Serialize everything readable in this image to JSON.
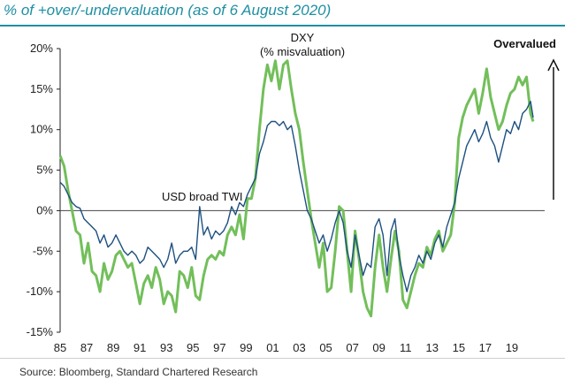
{
  "header": {
    "title": "% of +over/-undervaluation (as of 6 August 2020)"
  },
  "footer": {
    "source": "Source: Bloomberg, Standard Chartered Research"
  },
  "colors": {
    "title": "#1f8fa3",
    "dxy_line": "#72bf5a",
    "twi_line": "#1d5080",
    "axis": "#222222"
  },
  "chart_data": {
    "type": "line",
    "title": "% of +over/-undervaluation (as of 6 August 2020)",
    "xlabel": "",
    "ylabel": "",
    "xlim": [
      1985,
      2021.2
    ],
    "ylim": [
      -15,
      20
    ],
    "y_ticks": [
      20,
      15,
      10,
      5,
      0,
      -5,
      -10,
      -15
    ],
    "y_tick_labels": [
      "20%",
      "15%",
      "10%",
      "5%",
      "0%",
      "-5%",
      "-10%",
      "-15%"
    ],
    "x_ticks": [
      1985,
      1987,
      1989,
      1991,
      1993,
      1995,
      1997,
      1999,
      2001,
      2003,
      2005,
      2007,
      2009,
      2011,
      2013,
      2015,
      2017,
      2019
    ],
    "x_tick_labels": [
      "85",
      "87",
      "89",
      "91",
      "93",
      "95",
      "97",
      "99",
      "01",
      "03",
      "05",
      "07",
      "09",
      "11",
      "13",
      "15",
      "17",
      "19"
    ],
    "annotations": {
      "dxy_label_line1": "DXY",
      "dxy_label_line2": "(% misvaluation)",
      "twi_label": "USD broad TWI",
      "overvalued_label": "Overvalued"
    },
    "series": [
      {
        "name": "DXY (% misvaluation)",
        "x": [
          1985.0,
          1985.3,
          1985.6,
          1985.9,
          1986.2,
          1986.5,
          1986.8,
          1987.1,
          1987.4,
          1987.7,
          1988.0,
          1988.3,
          1988.6,
          1988.9,
          1989.2,
          1989.5,
          1989.8,
          1990.1,
          1990.4,
          1990.7,
          1991.0,
          1991.3,
          1991.6,
          1991.9,
          1992.2,
          1992.5,
          1992.8,
          1993.1,
          1993.4,
          1993.7,
          1994.0,
          1994.3,
          1994.6,
          1994.9,
          1995.2,
          1995.5,
          1995.8,
          1996.1,
          1996.4,
          1996.7,
          1997.0,
          1997.3,
          1997.6,
          1997.9,
          1998.2,
          1998.5,
          1998.8,
          1999.1,
          1999.4,
          1999.7,
          2000.0,
          2000.3,
          2000.6,
          2000.9,
          2001.2,
          2001.5,
          2001.8,
          2002.1,
          2002.4,
          2002.7,
          2003.0,
          2003.3,
          2003.6,
          2003.9,
          2004.2,
          2004.5,
          2004.8,
          2005.1,
          2005.4,
          2005.7,
          2006.0,
          2006.3,
          2006.6,
          2006.9,
          2007.2,
          2007.5,
          2007.8,
          2008.1,
          2008.4,
          2008.7,
          2009.0,
          2009.3,
          2009.6,
          2009.9,
          2010.2,
          2010.5,
          2010.8,
          2011.1,
          2011.4,
          2011.7,
          2012.0,
          2012.3,
          2012.6,
          2012.9,
          2013.2,
          2013.5,
          2013.8,
          2014.1,
          2014.4,
          2014.7,
          2015.0,
          2015.3,
          2015.6,
          2015.9,
          2016.2,
          2016.5,
          2016.8,
          2017.1,
          2017.4,
          2017.7,
          2018.0,
          2018.3,
          2018.6,
          2018.9,
          2019.2,
          2019.5,
          2019.8,
          2020.1,
          2020.4,
          2020.6
        ],
        "values": [
          6.8,
          5.5,
          2.5,
          0.0,
          -2.5,
          -3.0,
          -6.5,
          -4.0,
          -7.5,
          -8.0,
          -10.0,
          -6.5,
          -8.5,
          -7.5,
          -5.5,
          -5.0,
          -6.0,
          -7.0,
          -6.5,
          -9.0,
          -11.5,
          -9.0,
          -8.0,
          -9.5,
          -7.0,
          -8.5,
          -11.5,
          -10.0,
          -10.5,
          -12.5,
          -7.5,
          -8.0,
          -9.5,
          -7.0,
          -10.5,
          -11.0,
          -8.0,
          -6.0,
          -5.5,
          -6.0,
          -5.0,
          -5.5,
          -3.0,
          -2.0,
          -3.0,
          -0.5,
          -3.5,
          1.5,
          1.5,
          4.0,
          10.0,
          15.0,
          18.0,
          16.0,
          18.5,
          15.0,
          18.0,
          18.5,
          15.0,
          12.0,
          10.0,
          6.0,
          2.5,
          -1.0,
          -4.0,
          -7.0,
          -4.0,
          -10.0,
          -9.5,
          -5.0,
          0.5,
          0.0,
          -5.0,
          -10.0,
          -2.5,
          -6.0,
          -10.0,
          -12.0,
          -13.0,
          -7.0,
          -3.0,
          -7.0,
          -10.0,
          -6.0,
          -2.5,
          -5.0,
          -11.0,
          -12.0,
          -10.0,
          -8.0,
          -6.5,
          -7.0,
          -4.5,
          -5.5,
          -3.5,
          -2.5,
          -5.0,
          -4.0,
          -3.0,
          1.0,
          9.0,
          11.5,
          13.0,
          14.0,
          15.0,
          12.0,
          14.5,
          17.5,
          14.0,
          12.0,
          10.0,
          11.0,
          13.0,
          14.5,
          15.0,
          16.5,
          15.5,
          16.5,
          12.0,
          11.0
        ]
      },
      {
        "name": "USD broad TWI",
        "x": [
          1985.0,
          1985.3,
          1985.6,
          1985.9,
          1986.2,
          1986.5,
          1986.8,
          1987.1,
          1987.4,
          1987.7,
          1988.0,
          1988.3,
          1988.6,
          1988.9,
          1989.2,
          1989.5,
          1989.8,
          1990.1,
          1990.4,
          1990.7,
          1991.0,
          1991.3,
          1991.6,
          1991.9,
          1992.2,
          1992.5,
          1992.8,
          1993.1,
          1993.4,
          1993.7,
          1994.0,
          1994.3,
          1994.6,
          1994.9,
          1995.2,
          1995.5,
          1995.8,
          1996.1,
          1996.4,
          1996.7,
          1997.0,
          1997.3,
          1997.6,
          1997.9,
          1998.2,
          1998.5,
          1998.8,
          1999.1,
          1999.4,
          1999.7,
          2000.0,
          2000.3,
          2000.6,
          2000.9,
          2001.2,
          2001.5,
          2001.8,
          2002.1,
          2002.4,
          2002.7,
          2003.0,
          2003.3,
          2003.6,
          2003.9,
          2004.2,
          2004.5,
          2004.8,
          2005.1,
          2005.4,
          2005.7,
          2006.0,
          2006.3,
          2006.6,
          2006.9,
          2007.2,
          2007.5,
          2007.8,
          2008.1,
          2008.4,
          2008.7,
          2009.0,
          2009.3,
          2009.6,
          2009.9,
          2010.2,
          2010.5,
          2010.8,
          2011.1,
          2011.4,
          2011.7,
          2012.0,
          2012.3,
          2012.6,
          2012.9,
          2013.2,
          2013.5,
          2013.8,
          2014.1,
          2014.4,
          2014.7,
          2015.0,
          2015.3,
          2015.6,
          2015.9,
          2016.2,
          2016.5,
          2016.8,
          2017.1,
          2017.4,
          2017.7,
          2018.0,
          2018.3,
          2018.6,
          2018.9,
          2019.2,
          2019.5,
          2019.8,
          2020.1,
          2020.4,
          2020.6
        ],
        "values": [
          3.5,
          3.0,
          2.0,
          1.0,
          0.5,
          0.3,
          -1.0,
          -1.5,
          -2.0,
          -2.5,
          -4.0,
          -3.0,
          -4.5,
          -4.0,
          -3.0,
          -4.0,
          -5.0,
          -5.5,
          -5.0,
          -5.5,
          -6.5,
          -6.0,
          -4.5,
          -5.0,
          -5.5,
          -6.0,
          -7.0,
          -6.0,
          -4.0,
          -6.5,
          -5.5,
          -5.0,
          -5.0,
          -4.5,
          -6.0,
          0.5,
          -3.0,
          -2.0,
          -3.5,
          -2.5,
          -3.0,
          -2.5,
          -1.5,
          0.5,
          -0.5,
          1.0,
          0.5,
          2.0,
          3.0,
          4.0,
          7.0,
          8.5,
          10.5,
          11.0,
          11.0,
          10.5,
          11.0,
          10.0,
          10.5,
          8.0,
          5.0,
          2.5,
          0.0,
          -1.0,
          -2.5,
          -4.0,
          -3.0,
          -5.0,
          -3.5,
          -1.5,
          0.0,
          -1.5,
          -5.0,
          -7.0,
          -3.0,
          -5.5,
          -8.0,
          -6.5,
          -7.0,
          -2.0,
          -1.0,
          -3.0,
          -8.0,
          -2.5,
          -1.0,
          -5.5,
          -8.0,
          -10.0,
          -8.0,
          -7.0,
          -5.5,
          -6.5,
          -5.0,
          -6.0,
          -4.0,
          -3.0,
          -4.5,
          -2.0,
          -0.5,
          1.0,
          4.0,
          6.0,
          8.0,
          9.0,
          10.0,
          8.5,
          9.5,
          11.0,
          9.0,
          8.0,
          6.0,
          8.0,
          10.0,
          9.5,
          11.0,
          10.0,
          12.0,
          12.5,
          13.5,
          11.5
        ]
      }
    ]
  }
}
